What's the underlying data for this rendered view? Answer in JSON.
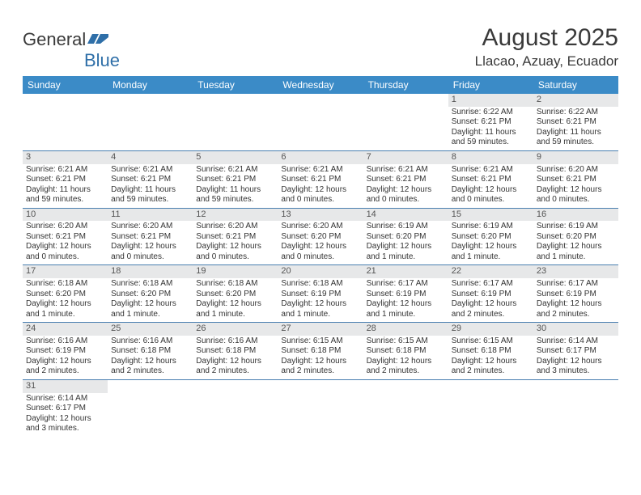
{
  "logo": {
    "text1": "General",
    "text2": "Blue"
  },
  "title": "August 2025",
  "location": "Llacao, Azuay, Ecuador",
  "colors": {
    "header_bg": "#3b8bc7",
    "header_text": "#ffffff",
    "daynum_bg": "#e7e8e9",
    "rule": "#4a7fb0",
    "logo_blue": "#2f6fa8"
  },
  "weekdays": [
    "Sunday",
    "Monday",
    "Tuesday",
    "Wednesday",
    "Thursday",
    "Friday",
    "Saturday"
  ],
  "weeks": [
    [
      null,
      null,
      null,
      null,
      null,
      {
        "n": "1",
        "sr": "Sunrise: 6:22 AM",
        "ss": "Sunset: 6:21 PM",
        "d1": "Daylight: 11 hours",
        "d2": "and 59 minutes."
      },
      {
        "n": "2",
        "sr": "Sunrise: 6:22 AM",
        "ss": "Sunset: 6:21 PM",
        "d1": "Daylight: 11 hours",
        "d2": "and 59 minutes."
      }
    ],
    [
      {
        "n": "3",
        "sr": "Sunrise: 6:21 AM",
        "ss": "Sunset: 6:21 PM",
        "d1": "Daylight: 11 hours",
        "d2": "and 59 minutes."
      },
      {
        "n": "4",
        "sr": "Sunrise: 6:21 AM",
        "ss": "Sunset: 6:21 PM",
        "d1": "Daylight: 11 hours",
        "d2": "and 59 minutes."
      },
      {
        "n": "5",
        "sr": "Sunrise: 6:21 AM",
        "ss": "Sunset: 6:21 PM",
        "d1": "Daylight: 11 hours",
        "d2": "and 59 minutes."
      },
      {
        "n": "6",
        "sr": "Sunrise: 6:21 AM",
        "ss": "Sunset: 6:21 PM",
        "d1": "Daylight: 12 hours",
        "d2": "and 0 minutes."
      },
      {
        "n": "7",
        "sr": "Sunrise: 6:21 AM",
        "ss": "Sunset: 6:21 PM",
        "d1": "Daylight: 12 hours",
        "d2": "and 0 minutes."
      },
      {
        "n": "8",
        "sr": "Sunrise: 6:21 AM",
        "ss": "Sunset: 6:21 PM",
        "d1": "Daylight: 12 hours",
        "d2": "and 0 minutes."
      },
      {
        "n": "9",
        "sr": "Sunrise: 6:20 AM",
        "ss": "Sunset: 6:21 PM",
        "d1": "Daylight: 12 hours",
        "d2": "and 0 minutes."
      }
    ],
    [
      {
        "n": "10",
        "sr": "Sunrise: 6:20 AM",
        "ss": "Sunset: 6:21 PM",
        "d1": "Daylight: 12 hours",
        "d2": "and 0 minutes."
      },
      {
        "n": "11",
        "sr": "Sunrise: 6:20 AM",
        "ss": "Sunset: 6:21 PM",
        "d1": "Daylight: 12 hours",
        "d2": "and 0 minutes."
      },
      {
        "n": "12",
        "sr": "Sunrise: 6:20 AM",
        "ss": "Sunset: 6:21 PM",
        "d1": "Daylight: 12 hours",
        "d2": "and 0 minutes."
      },
      {
        "n": "13",
        "sr": "Sunrise: 6:20 AM",
        "ss": "Sunset: 6:20 PM",
        "d1": "Daylight: 12 hours",
        "d2": "and 0 minutes."
      },
      {
        "n": "14",
        "sr": "Sunrise: 6:19 AM",
        "ss": "Sunset: 6:20 PM",
        "d1": "Daylight: 12 hours",
        "d2": "and 1 minute."
      },
      {
        "n": "15",
        "sr": "Sunrise: 6:19 AM",
        "ss": "Sunset: 6:20 PM",
        "d1": "Daylight: 12 hours",
        "d2": "and 1 minute."
      },
      {
        "n": "16",
        "sr": "Sunrise: 6:19 AM",
        "ss": "Sunset: 6:20 PM",
        "d1": "Daylight: 12 hours",
        "d2": "and 1 minute."
      }
    ],
    [
      {
        "n": "17",
        "sr": "Sunrise: 6:18 AM",
        "ss": "Sunset: 6:20 PM",
        "d1": "Daylight: 12 hours",
        "d2": "and 1 minute."
      },
      {
        "n": "18",
        "sr": "Sunrise: 6:18 AM",
        "ss": "Sunset: 6:20 PM",
        "d1": "Daylight: 12 hours",
        "d2": "and 1 minute."
      },
      {
        "n": "19",
        "sr": "Sunrise: 6:18 AM",
        "ss": "Sunset: 6:20 PM",
        "d1": "Daylight: 12 hours",
        "d2": "and 1 minute."
      },
      {
        "n": "20",
        "sr": "Sunrise: 6:18 AM",
        "ss": "Sunset: 6:19 PM",
        "d1": "Daylight: 12 hours",
        "d2": "and 1 minute."
      },
      {
        "n": "21",
        "sr": "Sunrise: 6:17 AM",
        "ss": "Sunset: 6:19 PM",
        "d1": "Daylight: 12 hours",
        "d2": "and 1 minute."
      },
      {
        "n": "22",
        "sr": "Sunrise: 6:17 AM",
        "ss": "Sunset: 6:19 PM",
        "d1": "Daylight: 12 hours",
        "d2": "and 2 minutes."
      },
      {
        "n": "23",
        "sr": "Sunrise: 6:17 AM",
        "ss": "Sunset: 6:19 PM",
        "d1": "Daylight: 12 hours",
        "d2": "and 2 minutes."
      }
    ],
    [
      {
        "n": "24",
        "sr": "Sunrise: 6:16 AM",
        "ss": "Sunset: 6:19 PM",
        "d1": "Daylight: 12 hours",
        "d2": "and 2 minutes."
      },
      {
        "n": "25",
        "sr": "Sunrise: 6:16 AM",
        "ss": "Sunset: 6:18 PM",
        "d1": "Daylight: 12 hours",
        "d2": "and 2 minutes."
      },
      {
        "n": "26",
        "sr": "Sunrise: 6:16 AM",
        "ss": "Sunset: 6:18 PM",
        "d1": "Daylight: 12 hours",
        "d2": "and 2 minutes."
      },
      {
        "n": "27",
        "sr": "Sunrise: 6:15 AM",
        "ss": "Sunset: 6:18 PM",
        "d1": "Daylight: 12 hours",
        "d2": "and 2 minutes."
      },
      {
        "n": "28",
        "sr": "Sunrise: 6:15 AM",
        "ss": "Sunset: 6:18 PM",
        "d1": "Daylight: 12 hours",
        "d2": "and 2 minutes."
      },
      {
        "n": "29",
        "sr": "Sunrise: 6:15 AM",
        "ss": "Sunset: 6:18 PM",
        "d1": "Daylight: 12 hours",
        "d2": "and 2 minutes."
      },
      {
        "n": "30",
        "sr": "Sunrise: 6:14 AM",
        "ss": "Sunset: 6:17 PM",
        "d1": "Daylight: 12 hours",
        "d2": "and 3 minutes."
      }
    ],
    [
      {
        "n": "31",
        "sr": "Sunrise: 6:14 AM",
        "ss": "Sunset: 6:17 PM",
        "d1": "Daylight: 12 hours",
        "d2": "and 3 minutes."
      },
      null,
      null,
      null,
      null,
      null,
      null
    ]
  ]
}
